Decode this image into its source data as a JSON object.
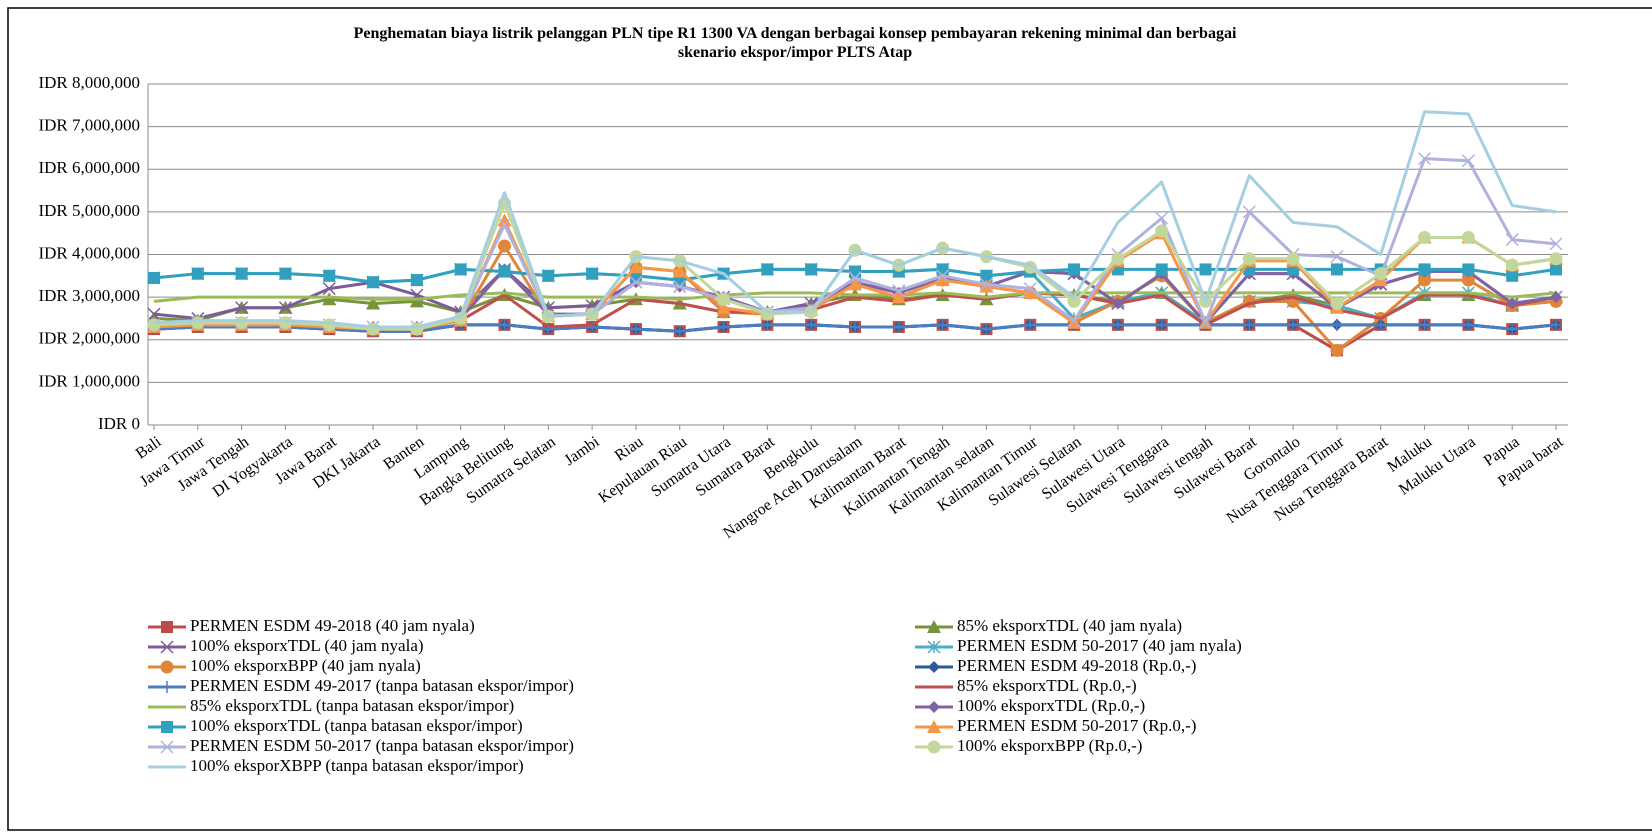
{
  "chart_data": {
    "type": "line",
    "title": "Penghematan  biaya  listrik  pelanggan  PLN  tipe  R1 1300 VA dengan  berbagai  konsep pembayaran  rekening minimal  dan berbagai\nskenario ekspor/impor  PLTS Atap",
    "categories": [
      "Bali",
      "Jawa Timur",
      "Jawa Tengah",
      "DI Yogyakarta",
      "Jawa Barat",
      "DKI Jakarta",
      "Banten",
      "Lampung",
      "Bangka Belitung",
      "Sumatra Selatan",
      "Jambi",
      "Riau",
      "Kepulauan Riau",
      "Sumatra Utara",
      "Sumatra Barat",
      "Bengkulu",
      "Nangroe Aceh Darusalam",
      "Kalimantan Barat",
      "Kalimantan Tengah",
      "Kalimantan selatan",
      "Kalimantan Timur",
      "Sulawesi Selatan",
      "Sulawesi Utara",
      "Sulawesi Tenggara",
      "Sulawesi tengah",
      "Sulawesi Barat",
      "Gorontalo",
      "Nusa Tenggara Timur",
      "Nusa Tenggara Barat",
      "Maluku",
      "Maluku Utara",
      "Papua",
      "Papua barat"
    ],
    "ylim": [
      0,
      8000000
    ],
    "yticks": [
      {
        "value": 0,
        "label": "IDR 0"
      },
      {
        "value": 1000000,
        "label": "IDR 1,000,000"
      },
      {
        "value": 2000000,
        "label": "IDR 2,000,000"
      },
      {
        "value": 3000000,
        "label": "IDR 3,000,000"
      },
      {
        "value": 4000000,
        "label": "IDR 4,000,000"
      },
      {
        "value": 5000000,
        "label": "IDR 5,000,000"
      },
      {
        "value": 6000000,
        "label": "IDR 6,000,000"
      },
      {
        "value": 7000000,
        "label": "IDR 7,000,000"
      },
      {
        "value": 8000000,
        "label": "IDR 8,000,000"
      }
    ],
    "grid": true,
    "legend": "bottom",
    "series": [
      {
        "name": "PERMEN ESDM 49-2018 (40 jam nyala)",
        "color": "#be4b48",
        "marker": "square",
        "values": [
          2250000,
          2300000,
          2300000,
          2300000,
          2250000,
          2200000,
          2200000,
          2350000,
          2350000,
          2250000,
          2300000,
          2250000,
          2200000,
          2300000,
          2350000,
          2350000,
          2300000,
          2300000,
          2350000,
          2250000,
          2350000,
          2350000,
          2350000,
          2350000,
          2350000,
          2350000,
          2350000,
          1750000,
          2350000,
          2350000,
          2350000,
          2250000,
          2350000
        ]
      },
      {
        "name": "85% eksporxTDL (40 jam nyala)",
        "color": "#77933c",
        "marker": "triangle",
        "values": [
          2500000,
          2450000,
          2750000,
          2750000,
          2950000,
          2850000,
          2900000,
          2650000,
          3050000,
          2750000,
          2800000,
          2950000,
          2850000,
          2650000,
          2650000,
          2850000,
          3050000,
          2950000,
          3050000,
          2950000,
          3100000,
          3050000,
          2900000,
          3100000,
          2400000,
          2900000,
          3050000,
          2800000,
          2500000,
          3050000,
          3050000,
          2800000,
          3000000
        ]
      },
      {
        "name": "100% eksporxTDL (40 jam nyala)",
        "color": "#7d5b9a",
        "marker": "x",
        "values": [
          2600000,
          2500000,
          2750000,
          2750000,
          3200000,
          3350000,
          3050000,
          2650000,
          3650000,
          2750000,
          2800000,
          3350000,
          3250000,
          3000000,
          2650000,
          2850000,
          3350000,
          3100000,
          3450000,
          3250000,
          3600000,
          3550000,
          2850000,
          3550000,
          2400000,
          3550000,
          3550000,
          2750000,
          3300000,
          3600000,
          3600000,
          2850000,
          3000000
        ]
      },
      {
        "name": "PERMEN ESDM 50-2017 (40 jam nyala)",
        "color": "#4aacc6",
        "marker": "star",
        "values": [
          3450000,
          3550000,
          3550000,
          3550000,
          3500000,
          3350000,
          3400000,
          3650000,
          3600000,
          3500000,
          3550000,
          3500000,
          3400000,
          3550000,
          3650000,
          3650000,
          3600000,
          3600000,
          3650000,
          3500000,
          3600000,
          2500000,
          2900000,
          3100000,
          2400000,
          2900000,
          2900000,
          2800000,
          2500000,
          3100000,
          3100000,
          2800000,
          3000000
        ]
      },
      {
        "name": "100% eksporxBPP (40 jam nyala)",
        "color": "#e0853a",
        "marker": "circle",
        "values": [
          2300000,
          2350000,
          2350000,
          2350000,
          2300000,
          2250000,
          2250000,
          2450000,
          4200000,
          2550000,
          2600000,
          3700000,
          3600000,
          2650000,
          2600000,
          2700000,
          3300000,
          3000000,
          3400000,
          3250000,
          3100000,
          2400000,
          2900000,
          3500000,
          2400000,
          2900000,
          2900000,
          1750000,
          2500000,
          3400000,
          3400000,
          2800000,
          2900000
        ]
      },
      {
        "name": "PERMEN ESDM 49-2018 (Rp.0,-)",
        "color": "#2c5a96",
        "marker": "diamond",
        "values": [
          2250000,
          2300000,
          2300000,
          2300000,
          2250000,
          2200000,
          2200000,
          2350000,
          2350000,
          2250000,
          2300000,
          2250000,
          2200000,
          2300000,
          2350000,
          2350000,
          2300000,
          2300000,
          2350000,
          2250000,
          2350000,
          2350000,
          2350000,
          2350000,
          2350000,
          2350000,
          2350000,
          2350000,
          2350000,
          2350000,
          2350000,
          2250000,
          2350000
        ]
      },
      {
        "name": "PERMEN ESDM 49-2017 (tanpa batasan ekspor/impor)",
        "color": "#4a7ec0",
        "marker": "plus",
        "values": [
          2250000,
          2300000,
          2300000,
          2300000,
          2250000,
          2200000,
          2200000,
          2350000,
          2350000,
          2250000,
          2300000,
          2250000,
          2200000,
          2300000,
          2350000,
          2350000,
          2300000,
          2300000,
          2350000,
          2250000,
          2350000,
          2350000,
          2350000,
          2350000,
          2350000,
          2350000,
          2350000,
          2350000,
          2350000,
          2350000,
          2350000,
          2250000,
          2350000
        ]
      },
      {
        "name": "85% eksporxTDL (Rp.0,-)",
        "color": "#c0504d",
        "marker": "none",
        "values": [
          2300000,
          2350000,
          2350000,
          2350000,
          2300000,
          2250000,
          2250000,
          2450000,
          3050000,
          2300000,
          2350000,
          2950000,
          2850000,
          2650000,
          2650000,
          2700000,
          3000000,
          2900000,
          3050000,
          2950000,
          3100000,
          3050000,
          2850000,
          3050000,
          2350000,
          2850000,
          3000000,
          2700000,
          2500000,
          3050000,
          3050000,
          2800000,
          3000000
        ]
      },
      {
        "name": "85% eksporxTDL (tanpa batasan ekspor/impor)",
        "color": "#9bbb59",
        "marker": "none",
        "values": [
          2900000,
          3000000,
          3000000,
          3000000,
          3000000,
          2950000,
          2950000,
          3050000,
          3100000,
          3000000,
          3000000,
          3000000,
          2950000,
          3050000,
          3100000,
          3100000,
          3050000,
          3050000,
          3100000,
          3000000,
          3100000,
          3100000,
          3100000,
          3100000,
          3100000,
          3100000,
          3100000,
          3100000,
          3100000,
          3100000,
          3100000,
          3000000,
          3100000
        ]
      },
      {
        "name": "100% eksporxTDL (Rp.0,-)",
        "color": "#8064a2",
        "marker": "diamond",
        "values": [
          2350000,
          2350000,
          2350000,
          2350000,
          2350000,
          2300000,
          2300000,
          2500000,
          3650000,
          2600000,
          2600000,
          3350000,
          3250000,
          3000000,
          2650000,
          2800000,
          3350000,
          3100000,
          3450000,
          3250000,
          3600000,
          3550000,
          2850000,
          3550000,
          2400000,
          3550000,
          3550000,
          2750000,
          3300000,
          3600000,
          3600000,
          2850000,
          3000000
        ]
      },
      {
        "name": "100% eksporxTDL (tanpa batasan ekspor/impor)",
        "color": "#31a0bf",
        "marker": "square",
        "values": [
          3450000,
          3550000,
          3550000,
          3550000,
          3500000,
          3350000,
          3400000,
          3650000,
          3600000,
          3500000,
          3550000,
          3500000,
          3400000,
          3550000,
          3650000,
          3650000,
          3600000,
          3600000,
          3650000,
          3500000,
          3600000,
          3650000,
          3650000,
          3650000,
          3650000,
          3650000,
          3650000,
          3650000,
          3650000,
          3650000,
          3650000,
          3500000,
          3650000
        ]
      },
      {
        "name": "PERMEN ESDM 50-2017 (Rp.0,-)",
        "color": "#f79646",
        "marker": "triangle",
        "values": [
          2300000,
          2350000,
          2350000,
          2350000,
          2300000,
          2250000,
          2250000,
          2450000,
          4800000,
          2550000,
          2600000,
          3700000,
          3600000,
          2750000,
          2600000,
          2700000,
          3300000,
          3000000,
          3400000,
          3250000,
          3100000,
          2400000,
          3850000,
          4500000,
          2400000,
          3850000,
          3850000,
          2750000,
          3400000,
          4400000,
          4400000,
          3750000,
          3900000
        ]
      },
      {
        "name": "PERMEN ESDM 50-2017 (tanpa batasan ekspor/impor)",
        "color": "#aeb2dc",
        "marker": "x",
        "values": [
          2350000,
          2400000,
          2400000,
          2400000,
          2350000,
          2300000,
          2300000,
          2500000,
          4700000,
          2550000,
          2600000,
          3350000,
          3250000,
          2950000,
          2650000,
          2750000,
          3450000,
          3150000,
          3500000,
          3300000,
          3200000,
          2450000,
          4000000,
          4850000,
          2400000,
          5000000,
          4000000,
          3950000,
          3500000,
          6250000,
          6200000,
          4350000,
          4250000
        ]
      },
      {
        "name": "100% eksporxBPP (Rp.0,-)",
        "color": "#c4d79b",
        "marker": "circle",
        "values": [
          2350000,
          2400000,
          2400000,
          2400000,
          2350000,
          2250000,
          2250000,
          2500000,
          5200000,
          2550000,
          2600000,
          3950000,
          3850000,
          2950000,
          2600000,
          2650000,
          4100000,
          3750000,
          4150000,
          3950000,
          3700000,
          2900000,
          3900000,
          4550000,
          2900000,
          3900000,
          3900000,
          2850000,
          3550000,
          4400000,
          4400000,
          3750000,
          3900000
        ]
      },
      {
        "name": "100% eksporXBPP (tanpa batasan ekspor/impor)",
        "color": "#a5cfe0",
        "marker": "none",
        "values": [
          2400000,
          2450000,
          2450000,
          2450000,
          2400000,
          2300000,
          2300000,
          2550000,
          5450000,
          2550000,
          2600000,
          3950000,
          3850000,
          3550000,
          2650000,
          2650000,
          4100000,
          3750000,
          4150000,
          3950000,
          3750000,
          3000000,
          4750000,
          5700000,
          2900000,
          5850000,
          4750000,
          4650000,
          4000000,
          7350000,
          7300000,
          5150000,
          5000000
        ]
      }
    ]
  }
}
